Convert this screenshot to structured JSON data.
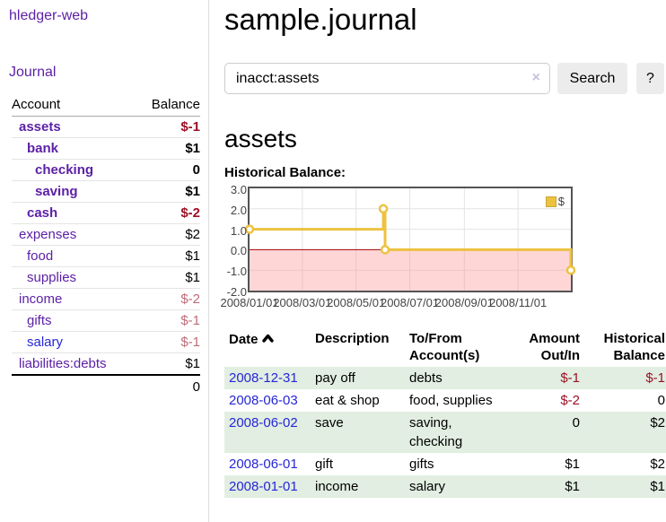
{
  "colors": {
    "link_purple": "#5b1fa6",
    "link_blue": "#2626d8",
    "negative_strong": "#9c1024",
    "negative_soft": "#bf6b78",
    "row_stripe_green": "#e1eee1",
    "series_yellow": "#edc240",
    "chart_border_gray": "#545454",
    "zero_line_red": "#a00000",
    "button_gray": "#ececec"
  },
  "sidebar": {
    "app_title": "hledger-web",
    "nav": {
      "journal_label": "Journal"
    },
    "accounts_table": {
      "col_account": "Account",
      "col_balance": "Balance",
      "rows": [
        {
          "name": "assets",
          "depth": 1,
          "bold": true,
          "balance": "$-1"
        },
        {
          "name": "bank",
          "depth": 2,
          "bold": true,
          "balance": "$1"
        },
        {
          "name": "checking",
          "depth": 3,
          "bold": true,
          "balance": "0"
        },
        {
          "name": "saving",
          "depth": 3,
          "bold": true,
          "balance": "$1"
        },
        {
          "name": "cash",
          "depth": 2,
          "bold": true,
          "balance": "$-2"
        },
        {
          "name": "expenses",
          "depth": 1,
          "bold": false,
          "balance": "$2"
        },
        {
          "name": "food",
          "depth": 2,
          "bold": false,
          "balance": "$1"
        },
        {
          "name": "supplies",
          "depth": 2,
          "bold": false,
          "balance": "$1"
        },
        {
          "name": "income",
          "depth": 1,
          "bold": false,
          "balance": "$-2"
        },
        {
          "name": "gifts",
          "depth": 2,
          "bold": false,
          "balance": "$-1"
        },
        {
          "name": "salary",
          "depth": 2,
          "bold": false,
          "balance": "$-1",
          "unvisited": true
        },
        {
          "name": "liabilities:debts",
          "depth": 1,
          "bold": false,
          "balance": "$1"
        }
      ],
      "total": "0"
    }
  },
  "main": {
    "title": "sample.journal",
    "search": {
      "value": "inacct:assets",
      "placeholder": "",
      "clear_icon": "×",
      "button_label": "Search",
      "help_label": "?"
    },
    "account_heading": "assets",
    "chart_heading": "Historical Balance:"
  },
  "chart_data": {
    "type": "line",
    "step": true,
    "title": "Historical Balance:",
    "series": [
      {
        "name": "$",
        "color": "#edc240",
        "points": [
          [
            "2008-01-01",
            1
          ],
          [
            "2008-06-01",
            2
          ],
          [
            "2008-06-03",
            0
          ],
          [
            "2008-12-31",
            -1
          ]
        ]
      }
    ],
    "x_ticks": [
      "2008/01/01",
      "2008/03/01",
      "2008/05/01",
      "2008/07/01",
      "2008/09/01",
      "2008/11/01"
    ],
    "y_ticks": [
      3.0,
      2.0,
      1.0,
      0.0,
      -1.0,
      -2.0
    ],
    "xlim": [
      "2008-01-01",
      "2008-12-31"
    ],
    "ylim": [
      -2,
      3
    ],
    "grid": true,
    "legend_position": "top-right",
    "legend_label": "$",
    "negative_region_color": "rgba(255,138,138,0.35)",
    "zero_line_color": "#a00000"
  },
  "register_table": {
    "headers": {
      "date": "Date",
      "sort_icon": "chevron-up",
      "description": "Description",
      "tofrom": "To/From\nAccount(s)",
      "amount": "Amount\nOut/In",
      "balance": "Historical\nBalance"
    },
    "rows": [
      {
        "date": "2008-12-31",
        "description": "pay off",
        "accounts": "debts",
        "amount": "$-1",
        "balance": "$-1"
      },
      {
        "date": "2008-06-03",
        "description": "eat & shop",
        "accounts": "food, supplies",
        "amount": "$-2",
        "balance": "0"
      },
      {
        "date": "2008-06-02",
        "description": "save",
        "accounts": "saving,\nchecking",
        "amount": "0",
        "balance": "$2"
      },
      {
        "date": "2008-06-01",
        "description": "gift",
        "accounts": "gifts",
        "amount": "$1",
        "balance": "$2"
      },
      {
        "date": "2008-01-01",
        "description": "income",
        "accounts": "salary",
        "amount": "$1",
        "balance": "$1"
      }
    ]
  }
}
